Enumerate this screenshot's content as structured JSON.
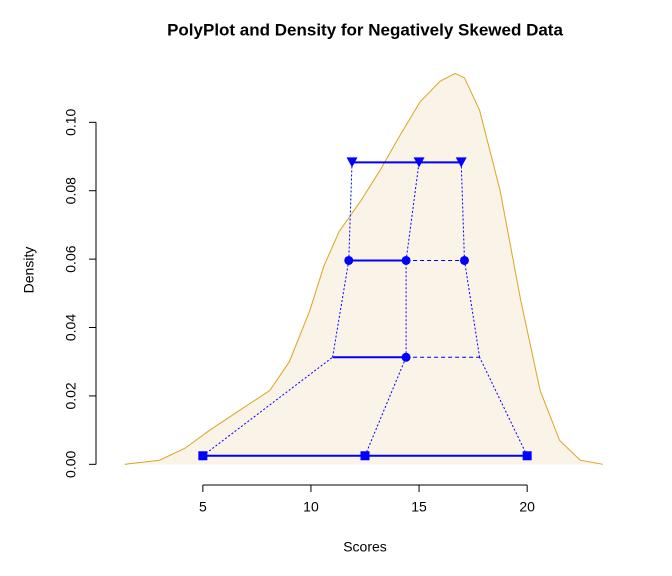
{
  "chart_data": {
    "type": "polyplot-density",
    "title": "PolyPlot and Density for Negatively Skewed Data",
    "x_label": "Scores",
    "y_label": "Density",
    "xlim": [
      1.4,
      23.6
    ],
    "ylim": [
      -0.004,
      0.115
    ],
    "xticks": [
      5,
      10,
      15,
      20
    ],
    "yticks": [
      {
        "value": 0,
        "label": "0.00"
      },
      0.02,
      0.04,
      0.06,
      0.08,
      {
        "value": 0.1,
        "label": "0.10"
      }
    ],
    "density": {
      "color": "#daa520",
      "fill": "#faf3e8",
      "x": [
        1.39,
        3.0,
        4.17,
        5.3,
        6.7,
        8.1,
        9.0,
        9.95,
        10.6,
        11.3,
        12.3,
        13.2,
        14.1,
        15.05,
        15.97,
        16.67,
        17.1,
        17.8,
        18.75,
        19.7,
        20.6,
        21.5,
        22.45,
        23.5
      ],
      "y": [
        0,
        0.0012,
        0.0047,
        0.0099,
        0.0158,
        0.0216,
        0.03,
        0.045,
        0.058,
        0.068,
        0.077,
        0.086,
        0.096,
        0.106,
        0.112,
        0.1143,
        0.113,
        0.1035,
        0.08,
        0.048,
        0.0216,
        0.007,
        0.0012,
        0
      ]
    },
    "poly_color": "#0000ff",
    "rows": [
      {
        "marker": "square",
        "x": [
          5,
          12.5,
          20
        ],
        "y": [
          0.0025,
          0.0025,
          0.0025
        ],
        "marked": [
          true,
          true,
          true
        ],
        "line_styles": [
          "solid",
          "solid"
        ]
      },
      {
        "marker": "circle",
        "x": [
          11.0,
          14.4,
          17.8
        ],
        "y": [
          0.0313,
          0.0313,
          0.0313
        ],
        "marked": [
          false,
          true,
          false
        ],
        "line_styles": [
          "solid",
          "dashed"
        ]
      },
      {
        "marker": "circle",
        "x": [
          11.75,
          14.4,
          17.1
        ],
        "y": [
          0.0596,
          0.0596,
          0.0596
        ],
        "marked": [
          true,
          true,
          true
        ],
        "line_styles": [
          "solid",
          "dashed"
        ]
      },
      {
        "marker": "triangle",
        "x": [
          11.9,
          15.0,
          16.95
        ],
        "y": [
          0.0883,
          0.0883,
          0.0883
        ],
        "marked": [
          true,
          true,
          true
        ],
        "line_styles": [
          "solid",
          "solid"
        ]
      }
    ]
  }
}
